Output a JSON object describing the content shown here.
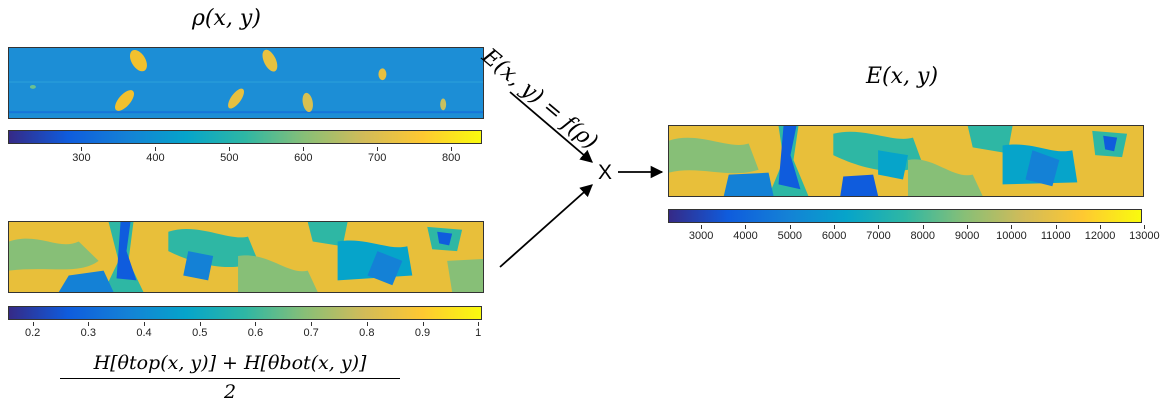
{
  "density_panel": {
    "title": "ρ(x, y)",
    "colorbar_ticks": [
      "300",
      "400",
      "500",
      "600",
      "700",
      "800"
    ]
  },
  "orientation_panel": {
    "colorbar_ticks": [
      "0.2",
      "0.3",
      "0.4",
      "0.5",
      "0.6",
      "0.7",
      "0.8",
      "0.9",
      "1"
    ],
    "formula_numerator": "H[θtop(x, y)] + H[θbot(x, y)]",
    "formula_denominator": "2"
  },
  "combine": {
    "relation_label": "E(x, y) = f(ρ)",
    "operator_symbol": "X"
  },
  "modulus_panel": {
    "title": "E(x, y)",
    "colorbar_ticks": [
      "3000",
      "4000",
      "5000",
      "6000",
      "7000",
      "8000",
      "9000",
      "10000",
      "11000",
      "12000",
      "13000"
    ]
  },
  "colors": {
    "parula": [
      "#352a87",
      "#0f5cdd",
      "#1481d6",
      "#06a4ca",
      "#2eb7a4",
      "#87bf77",
      "#d1bb59",
      "#fec832",
      "#f9fb0e"
    ],
    "field_blue": "#1c8ed6",
    "field_yellow": "#f2c12e",
    "field_green": "#39b5a0"
  }
}
